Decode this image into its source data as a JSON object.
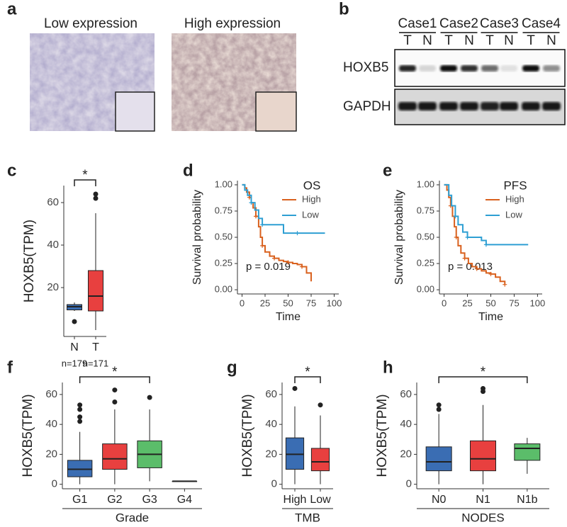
{
  "panel_a": {
    "label": "a",
    "captions": [
      "Low expression",
      "High expression"
    ]
  },
  "panel_b": {
    "label": "b",
    "cases": [
      "Case1",
      "Case2",
      "Case3",
      "Case4"
    ],
    "lanes": [
      "T",
      "N",
      "T",
      "N",
      "T",
      "N",
      "T",
      "N"
    ],
    "rows": [
      "HOXB5",
      "GAPDH"
    ]
  },
  "chart_data": [
    {
      "type": "box",
      "label": "c",
      "ylabel": "HOXB5(TPM)",
      "ylim": [
        -3,
        68
      ],
      "yticks": [
        20,
        40,
        60
      ],
      "boxes": [
        {
          "name": "N",
          "color": "#3a6db3",
          "min": 9,
          "q1": 9.5,
          "median": 11,
          "q3": 12,
          "max": 13,
          "outliers": [
            4
          ]
        },
        {
          "name": "T",
          "color": "#e8403f",
          "min": 0,
          "q1": 9,
          "median": 16,
          "q3": 28,
          "max": 55,
          "outliers": [
            62,
            64
          ]
        }
      ],
      "notes": [
        "n=179",
        "n=171"
      ],
      "significance": {
        "between": [
          "N",
          "T"
        ],
        "label": "*"
      }
    },
    {
      "type": "survival",
      "label": "d",
      "title": "OS",
      "xlabel": "Time",
      "ylabel": "Survival probability",
      "annotation": "p = 0.019",
      "xlim": [
        -5,
        105
      ],
      "xticks": [
        0,
        25,
        50,
        75,
        100
      ],
      "ylim": [
        -0.04,
        1.04
      ],
      "yticks": [
        {
          "value": 0,
          "label": "0.00"
        },
        {
          "value": 0.25,
          "label": "0.25"
        },
        {
          "value": 0.5,
          "label": "0.50"
        },
        {
          "value": 0.75,
          "label": "0.75"
        },
        {
          "value": 1,
          "label": "1.00"
        }
      ],
      "series": [
        {
          "name": "High",
          "color": "#d9611e",
          "x": [
            0,
            3,
            5,
            8,
            10,
            12,
            15,
            18,
            20,
            22,
            25,
            30,
            35,
            40,
            45,
            50,
            55,
            60,
            65,
            70,
            75
          ],
          "y": [
            1,
            0.97,
            0.93,
            0.88,
            0.83,
            0.78,
            0.7,
            0.6,
            0.5,
            0.42,
            0.36,
            0.32,
            0.3,
            0.28,
            0.27,
            0.26,
            0.25,
            0.24,
            0.22,
            0.16,
            0.08
          ]
        },
        {
          "name": "Low",
          "color": "#2e9fd3",
          "x": [
            0,
            3,
            6,
            10,
            14,
            18,
            22,
            30,
            45,
            60,
            90
          ],
          "y": [
            1,
            0.95,
            0.9,
            0.83,
            0.76,
            0.68,
            0.62,
            0.62,
            0.54,
            0.54,
            0.54
          ]
        }
      ]
    },
    {
      "type": "survival",
      "label": "e",
      "title": "PFS",
      "xlabel": "Time",
      "ylabel": "Survival probability",
      "annotation": "p = 0.013",
      "xlim": [
        -5,
        105
      ],
      "xticks": [
        0,
        25,
        50,
        75,
        100
      ],
      "ylim": [
        -0.04,
        1.04
      ],
      "yticks": [
        {
          "value": 0,
          "label": "0.00"
        },
        {
          "value": 0.25,
          "label": "0.25"
        },
        {
          "value": 0.5,
          "label": "0.50"
        },
        {
          "value": 0.75,
          "label": "0.75"
        },
        {
          "value": 1,
          "label": "1.00"
        }
      ],
      "series": [
        {
          "name": "High",
          "color": "#d9611e",
          "x": [
            0,
            3,
            5,
            7,
            9,
            11,
            13,
            15,
            18,
            22,
            26,
            30,
            35,
            40,
            45,
            50,
            55,
            60,
            65
          ],
          "y": [
            1,
            0.95,
            0.88,
            0.8,
            0.7,
            0.6,
            0.5,
            0.42,
            0.35,
            0.3,
            0.25,
            0.22,
            0.2,
            0.18,
            0.16,
            0.15,
            0.12,
            0.08,
            0.05
          ]
        },
        {
          "name": "Low",
          "color": "#2e9fd3",
          "x": [
            0,
            5,
            8,
            12,
            15,
            20,
            25,
            30,
            40,
            45,
            60,
            90
          ],
          "y": [
            1,
            0.9,
            0.8,
            0.7,
            0.62,
            0.55,
            0.5,
            0.5,
            0.47,
            0.43,
            0.43,
            0.43
          ]
        }
      ]
    },
    {
      "type": "box",
      "label": "f",
      "ylabel": "HOXB5(TPM)",
      "xlabel": "Grade",
      "ylim": [
        -3,
        68
      ],
      "yticks": [
        0,
        20,
        40,
        60
      ],
      "boxes": [
        {
          "name": "G1",
          "color": "#3a6db3",
          "min": 0,
          "q1": 5,
          "median": 10,
          "q3": 16,
          "max": 35,
          "outliers": [
            42,
            45,
            50,
            53
          ]
        },
        {
          "name": "G2",
          "color": "#e8403f",
          "min": 0,
          "q1": 10,
          "median": 17,
          "q3": 27,
          "max": 50,
          "outliers": [
            55,
            63
          ]
        },
        {
          "name": "G3",
          "color": "#5bbd6a",
          "min": 2,
          "q1": 11,
          "median": 20,
          "q3": 29,
          "max": 50,
          "outliers": [
            58
          ]
        },
        {
          "name": "G4",
          "color": "#8a5aa8",
          "min": 2,
          "q1": 2,
          "median": 2,
          "q3": 2,
          "max": 2,
          "outliers": []
        }
      ],
      "significance": {
        "between": [
          "G1",
          "G3"
        ],
        "label": "*"
      }
    },
    {
      "type": "box",
      "label": "g",
      "ylabel": "HOXB5(TPM)",
      "xlabel": "TMB",
      "ylim": [
        -3,
        68
      ],
      "yticks": [
        0,
        20,
        40,
        60
      ],
      "boxes": [
        {
          "name": "High",
          "color": "#3a6db3",
          "min": 0,
          "q1": 10,
          "median": 20,
          "q3": 31,
          "max": 52,
          "outliers": [
            64
          ]
        },
        {
          "name": "Low",
          "color": "#e8403f",
          "min": 0,
          "q1": 9,
          "median": 15,
          "q3": 24,
          "max": 46,
          "outliers": [
            53
          ]
        }
      ],
      "significance": {
        "between": [
          "High",
          "Low"
        ],
        "label": "*"
      }
    },
    {
      "type": "box",
      "label": "h",
      "ylabel": "HOXB5(TPM)",
      "xlabel": "NODES",
      "ylim": [
        -3,
        68
      ],
      "yticks": [
        0,
        20,
        40,
        60
      ],
      "boxes": [
        {
          "name": "N0",
          "color": "#3a6db3",
          "min": 0,
          "q1": 9,
          "median": 15,
          "q3": 25,
          "max": 47,
          "outliers": [
            50,
            53
          ]
        },
        {
          "name": "N1",
          "color": "#e8403f",
          "min": 0,
          "q1": 9,
          "median": 17,
          "q3": 29,
          "max": 53,
          "outliers": [
            62,
            64
          ]
        },
        {
          "name": "N1b",
          "color": "#5bbd6a",
          "min": 7,
          "q1": 16,
          "median": 24,
          "q3": 27,
          "max": 31,
          "outliers": []
        }
      ],
      "significance": {
        "between": [
          "N0",
          "N1b"
        ],
        "label": "*"
      }
    }
  ]
}
